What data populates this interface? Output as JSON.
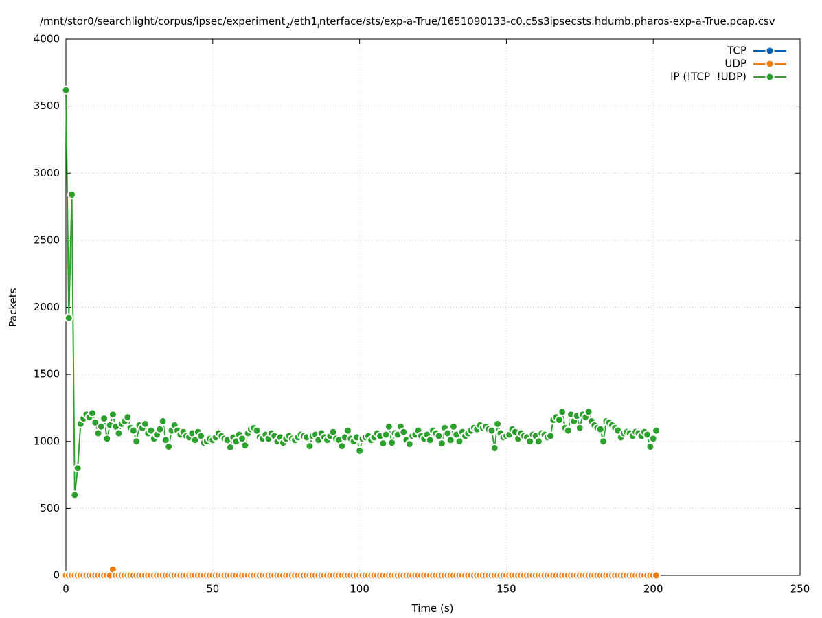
{
  "chart_data": {
    "type": "line",
    "title": [
      "/mnt/stor0/searchlight/corpus/ipsec/experiment",
      "2",
      "/eth1",
      "i",
      "nterface/sts/exp-a-True/1651090133-c0.c5s3ipsecsts.hdumb.pharos-exp-a-True.pcap.csv"
    ],
    "x_label": "Time (s)",
    "y_label": "Packets",
    "xlim": [
      0,
      250
    ],
    "xticks": [
      0,
      50,
      100,
      150,
      200,
      250
    ],
    "ylim": [
      0,
      4000
    ],
    "yticks": [
      0,
      500,
      1000,
      1500,
      2000,
      2500,
      3000,
      3500,
      4000
    ],
    "grid": true,
    "legend": "upper right",
    "x": [
      0,
      1,
      2,
      3,
      4,
      5,
      6,
      7,
      8,
      9,
      10,
      11,
      12,
      13,
      14,
      15,
      16,
      17,
      18,
      19,
      20,
      21,
      22,
      23,
      24,
      25,
      26,
      27,
      28,
      29,
      30,
      31,
      32,
      33,
      34,
      35,
      36,
      37,
      38,
      39,
      40,
      41,
      42,
      43,
      44,
      45,
      46,
      47,
      48,
      49,
      50,
      51,
      52,
      53,
      54,
      55,
      56,
      57,
      58,
      59,
      60,
      61,
      62,
      63,
      64,
      65,
      66,
      67,
      68,
      69,
      70,
      71,
      72,
      73,
      74,
      75,
      76,
      77,
      78,
      79,
      80,
      81,
      82,
      83,
      84,
      85,
      86,
      87,
      88,
      89,
      90,
      91,
      92,
      93,
      94,
      95,
      96,
      97,
      98,
      99,
      100,
      101,
      102,
      103,
      104,
      105,
      106,
      107,
      108,
      109,
      110,
      111,
      112,
      113,
      114,
      115,
      116,
      117,
      118,
      119,
      120,
      121,
      122,
      123,
      124,
      125,
      126,
      127,
      128,
      129,
      130,
      131,
      132,
      133,
      134,
      135,
      136,
      137,
      138,
      139,
      140,
      141,
      142,
      143,
      144,
      145,
      146,
      147,
      148,
      149,
      150,
      151,
      152,
      153,
      154,
      155,
      156,
      157,
      158,
      159,
      160,
      161,
      162,
      163,
      164,
      165,
      166,
      167,
      168,
      169,
      170,
      171,
      172,
      173,
      174,
      175,
      176,
      177,
      178,
      179,
      180,
      181,
      182,
      183,
      184,
      185,
      186,
      187,
      188,
      189,
      190,
      191,
      192,
      193,
      194,
      195,
      196,
      197,
      198,
      199,
      200,
      201
    ],
    "series": [
      {
        "name": "TCP",
        "color": "#0060ad",
        "values": [
          0,
          0,
          0,
          0,
          0,
          0,
          0,
          0,
          0,
          0,
          0,
          0,
          0,
          0,
          0,
          0,
          0,
          0,
          0,
          0,
          0,
          0,
          0,
          0,
          0,
          0,
          0,
          0,
          0,
          0,
          0,
          0,
          0,
          0,
          0,
          0,
          0,
          0,
          0,
          0,
          0,
          0,
          0,
          0,
          0,
          0,
          0,
          0,
          0,
          0,
          0,
          0,
          0,
          0,
          0,
          0,
          0,
          0,
          0,
          0,
          0,
          0,
          0,
          0,
          0,
          0,
          0,
          0,
          0,
          0,
          0,
          0,
          0,
          0,
          0,
          0,
          0,
          0,
          0,
          0,
          0,
          0,
          0,
          0,
          0,
          0,
          0,
          0,
          0,
          0,
          0,
          0,
          0,
          0,
          0,
          0,
          0,
          0,
          0,
          0,
          0,
          0,
          0,
          0,
          0,
          0,
          0,
          0,
          0,
          0,
          0,
          0,
          0,
          0,
          0,
          0,
          0,
          0,
          0,
          0,
          0,
          0,
          0,
          0,
          0,
          0,
          0,
          0,
          0,
          0,
          0,
          0,
          0,
          0,
          0,
          0,
          0,
          0,
          0,
          0,
          0,
          0,
          0,
          0,
          0,
          0,
          0,
          0,
          0,
          0,
          0,
          0,
          0,
          0,
          0,
          0,
          0,
          0,
          0,
          0,
          0,
          0,
          0,
          0,
          0,
          0,
          0,
          0,
          0,
          0,
          0,
          0,
          0,
          0,
          0,
          0,
          0,
          0,
          0,
          0,
          0,
          0,
          0,
          0,
          0,
          0,
          0,
          0,
          0,
          0,
          0,
          0,
          0,
          0,
          0,
          0,
          0,
          0,
          0,
          0,
          0,
          0
        ]
      },
      {
        "name": "UDP",
        "color": "#ec7d14",
        "values": [
          0,
          0,
          0,
          0,
          0,
          0,
          0,
          0,
          0,
          0,
          0,
          0,
          0,
          0,
          0,
          0,
          45,
          0,
          0,
          0,
          0,
          0,
          0,
          0,
          0,
          0,
          0,
          0,
          0,
          0,
          0,
          0,
          0,
          0,
          0,
          0,
          0,
          0,
          0,
          0,
          0,
          0,
          0,
          0,
          0,
          0,
          0,
          0,
          0,
          0,
          0,
          0,
          0,
          0,
          0,
          0,
          0,
          0,
          0,
          0,
          0,
          0,
          0,
          0,
          0,
          0,
          0,
          0,
          0,
          0,
          0,
          0,
          0,
          0,
          0,
          0,
          0,
          0,
          0,
          0,
          0,
          0,
          0,
          0,
          0,
          0,
          0,
          0,
          0,
          0,
          0,
          0,
          0,
          0,
          0,
          0,
          0,
          0,
          0,
          0,
          0,
          0,
          0,
          0,
          0,
          0,
          0,
          0,
          0,
          0,
          0,
          0,
          0,
          0,
          0,
          0,
          0,
          0,
          0,
          0,
          0,
          0,
          0,
          0,
          0,
          0,
          0,
          0,
          0,
          0,
          0,
          0,
          0,
          0,
          0,
          0,
          0,
          0,
          0,
          0,
          0,
          0,
          0,
          0,
          0,
          0,
          0,
          0,
          0,
          0,
          0,
          0,
          0,
          0,
          0,
          0,
          0,
          0,
          0,
          0,
          0,
          0,
          0,
          0,
          0,
          0,
          0,
          0,
          0,
          0,
          0,
          0,
          0,
          0,
          0,
          0,
          0,
          0,
          0,
          0,
          0,
          0,
          0,
          0,
          0,
          0,
          0,
          0,
          0,
          0,
          0,
          0,
          0,
          0,
          0,
          0,
          0,
          0,
          0,
          0,
          0,
          0
        ]
      },
      {
        "name": "IP (!TCP  !UDP)",
        "color": "#2ca02c",
        "values": [
          3620,
          1920,
          2840,
          600,
          800,
          1130,
          1170,
          1200,
          1180,
          1210,
          1140,
          1060,
          1110,
          1170,
          1020,
          1120,
          1200,
          1110,
          1060,
          1130,
          1150,
          1180,
          1100,
          1080,
          1000,
          1120,
          1100,
          1130,
          1060,
          1080,
          1020,
          1050,
          1090,
          1150,
          1010,
          960,
          1080,
          1120,
          1080,
          1050,
          1070,
          1040,
          1030,
          1060,
          1010,
          1070,
          1040,
          990,
          1000,
          1020,
          1010,
          1030,
          1060,
          1040,
          1020,
          1010,
          955,
          1030,
          1000,
          1050,
          1020,
          970,
          1060,
          1090,
          1100,
          1080,
          1030,
          1020,
          1050,
          1020,
          1060,
          1040,
          1000,
          1030,
          990,
          1020,
          1040,
          1020,
          1010,
          1030,
          1050,
          1040,
          1030,
          965,
          1040,
          1050,
          1010,
          1060,
          1030,
          1010,
          1040,
          1070,
          1020,
          1010,
          965,
          1030,
          1080,
          1020,
          1000,
          1030,
          930,
          1020,
          1030,
          1040,
          1010,
          1030,
          1060,
          1040,
          985,
          1050,
          1110,
          990,
          1060,
          1050,
          1110,
          1070,
          1010,
          980,
          1040,
          1050,
          1080,
          1040,
          1020,
          1050,
          1010,
          1080,
          1060,
          1040,
          985,
          1100,
          1060,
          1010,
          1110,
          1050,
          1000,
          1070,
          1040,
          1060,
          1080,
          1100,
          1090,
          1120,
          1100,
          1110,
          1090,
          1080,
          950,
          1130,
          1060,
          1030,
          1040,
          1050,
          1090,
          1070,
          1020,
          1060,
          1040,
          1030,
          1000,
          1050,
          1040,
          1000,
          1060,
          1050,
          1030,
          1040,
          1160,
          1180,
          1160,
          1220,
          1100,
          1080,
          1200,
          1150,
          1190,
          1100,
          1200,
          1180,
          1220,
          1150,
          1120,
          1100,
          1090,
          1000,
          1150,
          1140,
          1120,
          1100,
          1080,
          1030,
          1060,
          1070,
          1060,
          1040,
          1070,
          1060,
          1040,
          1070,
          1050,
          960,
          1020,
          1080
        ]
      }
    ]
  }
}
